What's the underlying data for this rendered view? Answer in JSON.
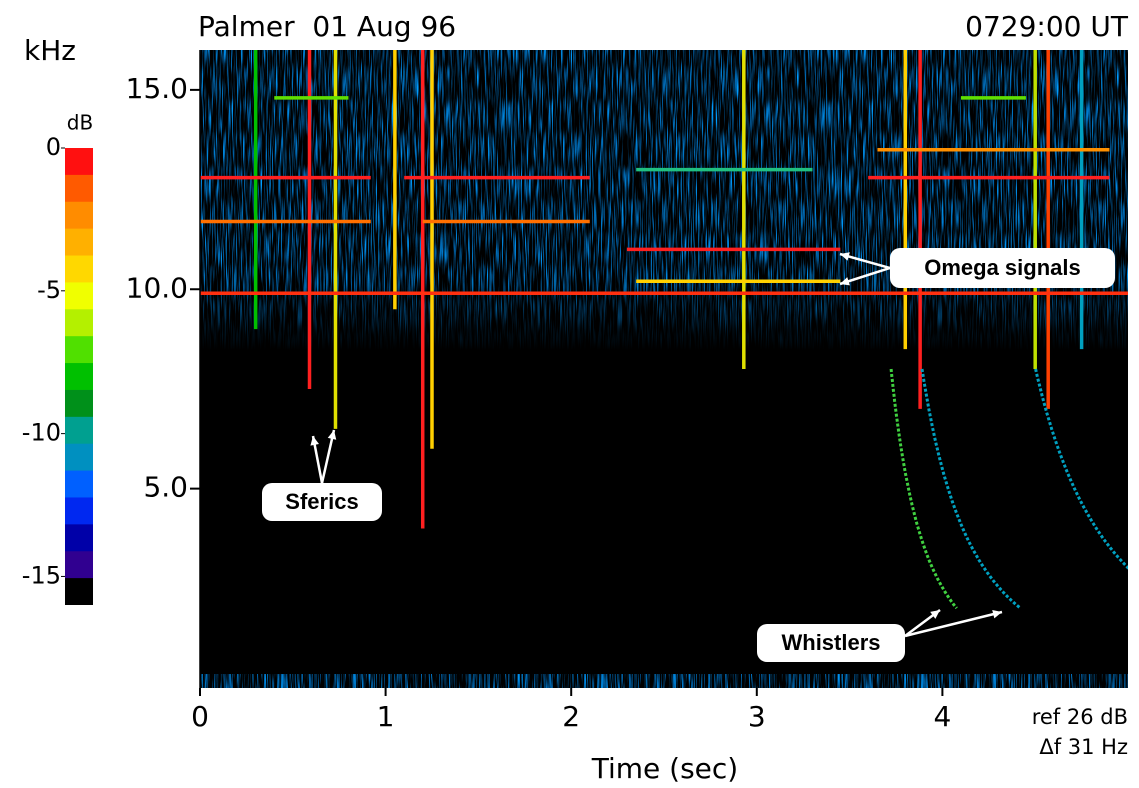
{
  "chart_data": {
    "type": "spectrogram",
    "title": "Palmer  01 Aug 96",
    "time_label": "0729:00 UT",
    "ylabel": "kHz",
    "xlabel": "Time (sec)",
    "notes": [
      "ref 26 dB",
      "Δf 31 Hz"
    ],
    "xlim": [
      0,
      5
    ],
    "xticks": [
      0,
      1,
      2,
      3,
      4
    ],
    "ylim": [
      0,
      16
    ],
    "yticks": [
      {
        "value": 5,
        "label": "5.0"
      },
      {
        "value": 10,
        "label": "10.0"
      },
      {
        "value": 15,
        "label": "15.0"
      }
    ],
    "colorbar": {
      "label": "dB",
      "lim": [
        -16,
        0
      ],
      "ticks": [
        0,
        -5,
        -10,
        -15
      ],
      "colors": [
        "#ff1010",
        "#ff5a00",
        "#ff8c00",
        "#ffb000",
        "#ffd800",
        "#f0ff00",
        "#b4f000",
        "#50e000",
        "#00c000",
        "#00901a",
        "#00a090",
        "#0090c0",
        "#0060ff",
        "#0028f0",
        "#0000a8",
        "#300090"
      ]
    },
    "signals": [
      {
        "f": 9.9,
        "t": [
          0,
          5
        ],
        "color": "#ff3010"
      },
      {
        "f": 12.8,
        "t": [
          0,
          0.92
        ],
        "color": "#ff2020"
      },
      {
        "f": 12.8,
        "t": [
          1.1,
          2.1
        ],
        "color": "#ff2020"
      },
      {
        "f": 12.8,
        "t": [
          3.6,
          4.9
        ],
        "color": "#ff2020"
      },
      {
        "f": 11.0,
        "t": [
          2.3,
          3.45
        ],
        "color": "#ff2020"
      },
      {
        "f": 10.2,
        "t": [
          2.35,
          3.45
        ],
        "color": "#ffd000"
      },
      {
        "f": 11.7,
        "t": [
          0,
          0.92
        ],
        "color": "#ff7000"
      },
      {
        "f": 11.7,
        "t": [
          1.2,
          2.1
        ],
        "color": "#ff7000"
      },
      {
        "f": 13.5,
        "t": [
          3.65,
          4.9
        ],
        "color": "#ff9000"
      },
      {
        "f": 14.8,
        "t": [
          0.4,
          0.8
        ],
        "color": "#60e000"
      },
      {
        "f": 14.8,
        "t": [
          4.1,
          4.45
        ],
        "color": "#60e000"
      },
      {
        "f": 13.0,
        "t": [
          2.35,
          3.3
        ],
        "color": "#20c080"
      }
    ],
    "sferics": [
      {
        "t": 0.59,
        "f": [
          7.5,
          16
        ],
        "color": "#ff2020"
      },
      {
        "t": 0.73,
        "f": [
          6.5,
          16
        ],
        "color": "#e0e000"
      },
      {
        "t": 0.3,
        "f": [
          9,
          16
        ],
        "color": "#00c000"
      },
      {
        "t": 1.05,
        "f": [
          9.5,
          16
        ],
        "color": "#ffd000"
      },
      {
        "t": 1.2,
        "f": [
          4,
          16
        ],
        "color": "#ff2020"
      },
      {
        "t": 1.25,
        "f": [
          6,
          16
        ],
        "color": "#ffd000"
      },
      {
        "t": 2.93,
        "f": [
          8,
          16
        ],
        "color": "#e0e000"
      },
      {
        "t": 3.88,
        "f": [
          7,
          16
        ],
        "color": "#ff2020"
      },
      {
        "t": 3.8,
        "f": [
          8.5,
          16
        ],
        "color": "#ffd000"
      },
      {
        "t": 4.57,
        "f": [
          7,
          16
        ],
        "color": "#ff4000"
      },
      {
        "t": 4.5,
        "f": [
          8,
          16
        ],
        "color": "#c0e000"
      },
      {
        "t": 4.75,
        "f": [
          8.5,
          16
        ],
        "color": "#00a0c0"
      }
    ],
    "whistlers": [
      {
        "t0": 3.37,
        "D": 1.0,
        "color": "#40d040"
      },
      {
        "t0": 3.36,
        "D": 1.5,
        "color": "#00a0c0"
      },
      {
        "t0": 3.71,
        "D": 2.24,
        "color": "#00a0c0"
      }
    ],
    "annotations": [
      {
        "text": "Sferics"
      },
      {
        "text": "Omega signals"
      },
      {
        "text": "Whistlers"
      }
    ]
  }
}
